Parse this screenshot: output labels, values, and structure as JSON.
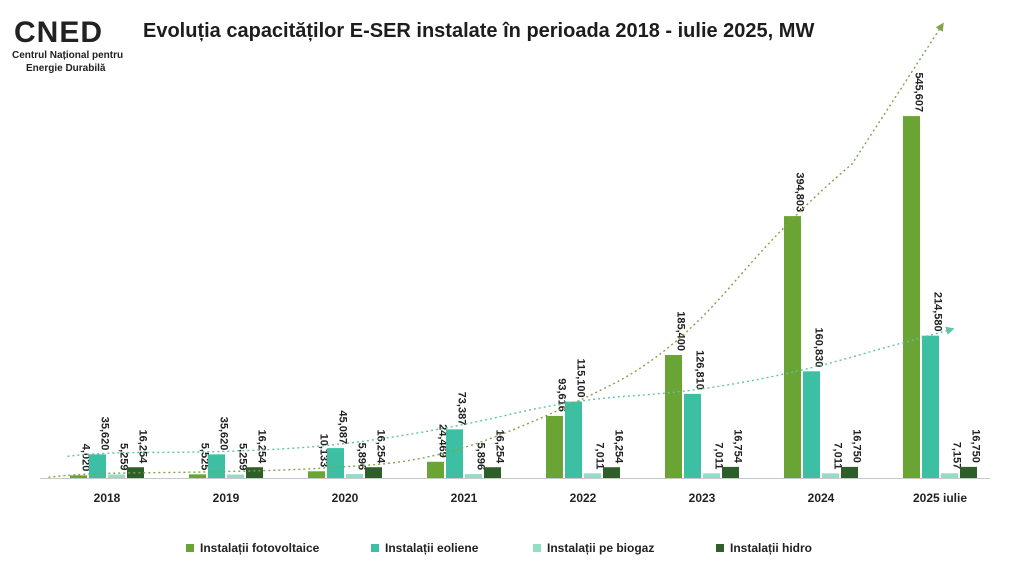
{
  "logo": {
    "mark": "CNED",
    "line1": "Centrul Național pentru",
    "line2": "Energie Durabilă"
  },
  "title": "Evoluția capacităților E-SER instalate în perioada 2018 - iulie 2025, MW",
  "colors": {
    "fotovoltaice": "#6aa434",
    "eoliene": "#3dbfa3",
    "biogaz": "#93dcc8",
    "hidro": "#2e5e2a",
    "trend_pv": "#7da64a",
    "trend_wind": "#62c2a8",
    "axis": "#c8c8c8"
  },
  "chart_data": {
    "type": "bar",
    "title": "Evoluția capacităților E-SER instalate în perioada 2018 - iulie 2025, MW",
    "categories": [
      "2018",
      "2019",
      "2020",
      "2021",
      "2022",
      "2023",
      "2024",
      "2025 iulie"
    ],
    "ylim": [
      0,
      600
    ],
    "series": [
      {
        "name": "Instalații fotovoltaice",
        "color_key": "fotovoltaice",
        "values": [
          4.02,
          5.525,
          10.133,
          24.469,
          93.616,
          185.4,
          394.803,
          545.607
        ],
        "labels": [
          "4,020",
          "5,525",
          "10,133",
          "24,469",
          "93,616",
          "185,400",
          "394,803",
          "545,607"
        ]
      },
      {
        "name": "Instalații eoliene",
        "color_key": "eoliene",
        "values": [
          35.62,
          35.62,
          45.087,
          73.387,
          115.1,
          126.81,
          160.83,
          214.58
        ],
        "labels": [
          "35,620",
          "35,620",
          "45,087",
          "73,387",
          "115,100",
          "126,810",
          "160,830",
          "214,580"
        ]
      },
      {
        "name": "Instalații pe biogaz",
        "color_key": "biogaz",
        "values": [
          5.259,
          5.259,
          5.896,
          5.896,
          7.011,
          7.011,
          7.011,
          7.157
        ],
        "labels": [
          "5,259",
          "5,259",
          "5,896",
          "5,896",
          "7,011",
          "7,011",
          "7,011",
          "7,157"
        ]
      },
      {
        "name": "Instalații hidro",
        "color_key": "hidro",
        "values": [
          16.254,
          16.254,
          16.254,
          16.254,
          16.254,
          16.754,
          16.75,
          16.75
        ],
        "labels": [
          "16,254",
          "16,254",
          "16,254",
          "16,254",
          "16,254",
          "16,754",
          "16,750",
          "16,750"
        ]
      }
    ],
    "trendlines": [
      {
        "series": "Instalații fotovoltaice",
        "style": "dotted",
        "arrow": true
      },
      {
        "series": "Instalații eoliene",
        "style": "dotted",
        "arrow": true
      }
    ],
    "legend_position": "bottom",
    "grid": false
  },
  "legend": [
    {
      "label": "Instalații fotovoltaice",
      "color_key": "fotovoltaice"
    },
    {
      "label": "Instalații eoliene",
      "color_key": "eoliene"
    },
    {
      "label": "Instalații pe biogaz",
      "color_key": "biogaz"
    },
    {
      "label": "Instalații hidro",
      "color_key": "hidro"
    }
  ]
}
